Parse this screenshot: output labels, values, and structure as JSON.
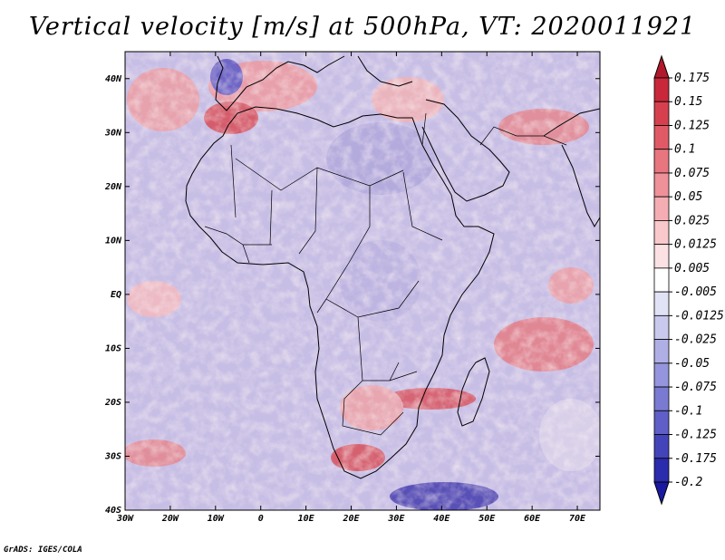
{
  "title": "Vertical velocity [m/s] at 500hPa, VT: 2020011921",
  "credit": "GrADS: IGES/COLA",
  "map": {
    "lat_labels": [
      "40N",
      "30N",
      "20N",
      "10N",
      "EQ",
      "10S",
      "20S",
      "30S",
      "40S"
    ],
    "lon_labels": [
      "30W",
      "20W",
      "10W",
      "0",
      "10E",
      "20E",
      "30E",
      "40E",
      "50E",
      "60E",
      "70E"
    ],
    "lat_range": [
      -40,
      45
    ],
    "lon_range": [
      -30,
      75
    ],
    "variable": "Vertical velocity",
    "units": "m/s",
    "level": "500hPa",
    "valid_time": "2020011921"
  },
  "colorbar": {
    "labels": [
      "0.175",
      "0.15",
      "0.125",
      "0.1",
      "0.075",
      "0.05",
      "0.025",
      "0.0125",
      "0.005",
      "-0.005",
      "-0.0125",
      "-0.025",
      "-0.05",
      "-0.075",
      "-0.1",
      "-0.125",
      "-0.175",
      "-0.2"
    ],
    "colors": [
      "#b2182b",
      "#c8283a",
      "#d6404e",
      "#e05a66",
      "#e8767f",
      "#ef9199",
      "#f4adb2",
      "#f8c8cb",
      "#fbe1e3",
      "#ffffff",
      "#e2e2f6",
      "#c9c9ee",
      "#afafe6",
      "#9595dd",
      "#7a7ad2",
      "#5f5fc7",
      "#4444ba",
      "#2b2bad",
      "#1a1aa0"
    ]
  },
  "colors": {
    "positive": "#d0404a",
    "negative": "#5a5ad0",
    "coastline": "#000000"
  }
}
